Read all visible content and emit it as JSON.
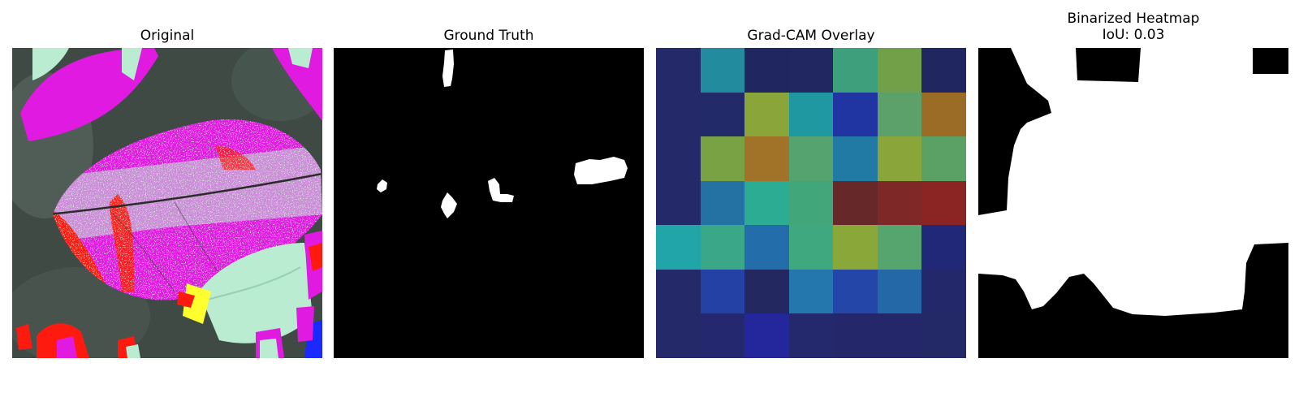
{
  "figure": {
    "panels": [
      {
        "title": "Original"
      },
      {
        "title": "Ground Truth"
      },
      {
        "title": "Grad-CAM Overlay"
      },
      {
        "title": "Binarized Heatmap",
        "subtitle": "IoU: 0.03"
      }
    ],
    "gradcam_grid": [
      [
        "#24296a",
        "#228c9e",
        "#20265f",
        "#202761",
        "#3d9f7c",
        "#72a048",
        "#1f2660"
      ],
      [
        "#24296a",
        "#232a69",
        "#8aa63b",
        "#1f98a2",
        "#2035a2",
        "#5ca06a",
        "#9b6c25"
      ],
      [
        "#24296a",
        "#78a243",
        "#a07328",
        "#55a46f",
        "#207aa4",
        "#8aa63b",
        "#5ba064"
      ],
      [
        "#24296a",
        "#2472a4",
        "#2cac93",
        "#41a77a",
        "#662828",
        "#7e2828",
        "#8a2524"
      ],
      [
        "#21a5a9",
        "#3aa788",
        "#236eaa",
        "#40a87e",
        "#8aa83a",
        "#56a46e",
        "#222878"
      ],
      [
        "#24296a",
        "#2442a6",
        "#232860",
        "#2477ac",
        "#2446a8",
        "#2468a8",
        "#22286a"
      ],
      [
        "#24296a",
        "#24286e",
        "#24279c",
        "#24286c",
        "#24286a",
        "#24286b",
        "#232866"
      ]
    ]
  }
}
